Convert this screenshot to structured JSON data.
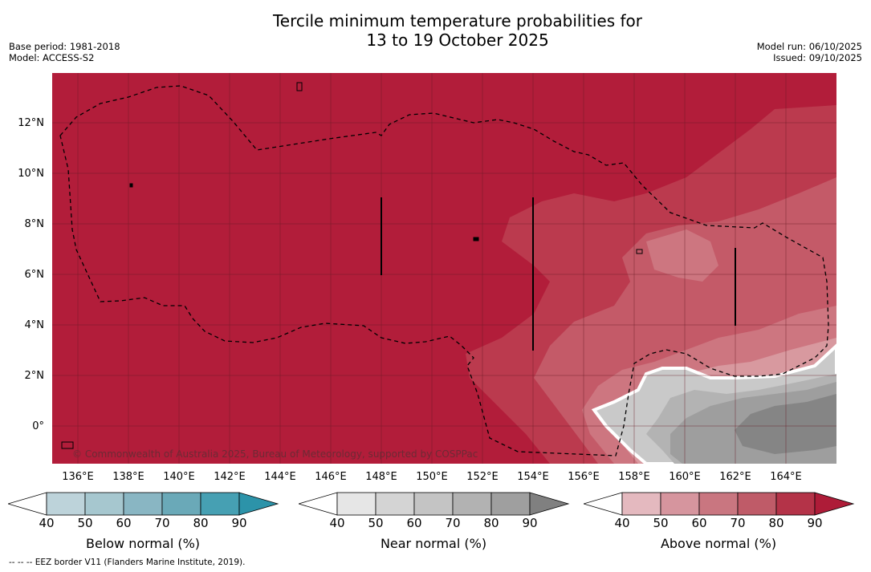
{
  "title_line1": "Tercile minimum temperature probabilities for",
  "title_line2": "13 to 19 October 2025",
  "left_meta": {
    "base_period": "Base period: 1981-2018",
    "model": "Model: ACCESS-S2"
  },
  "right_meta": {
    "model_run": "Model run: 06/10/2025",
    "issued": "Issued: 09/10/2025"
  },
  "map": {
    "lat_labels": [
      "12°N",
      "10°N",
      "8°N",
      "6°N",
      "4°N",
      "2°N",
      "0°"
    ],
    "lon_labels": [
      "136°E",
      "138°E",
      "140°E",
      "142°E",
      "144°E",
      "146°E",
      "148°E",
      "150°E",
      "152°E",
      "154°E",
      "156°E",
      "158°E",
      "160°E",
      "162°E",
      "164°E"
    ],
    "copyright": "© Commonwealth of Australia 2025, Bureau of Meteorology, supported by COSPPac"
  },
  "colorbars": [
    {
      "label": "Below normal (%)",
      "ticks": [
        "40",
        "50",
        "60",
        "70",
        "80",
        "90"
      ],
      "colors": [
        "#ffffff",
        "#bdd3da",
        "#a6c7cf",
        "#89b6c3",
        "#6aa9b8",
        "#46a0b3",
        "#2c93a9"
      ]
    },
    {
      "label": "Near normal (%)",
      "ticks": [
        "40",
        "50",
        "60",
        "70",
        "80",
        "90"
      ],
      "colors": [
        "#ffffff",
        "#e6e6e6",
        "#d4d4d4",
        "#c4c4c4",
        "#b2b2b2",
        "#9f9f9f",
        "#808080"
      ]
    },
    {
      "label": "Above normal (%)",
      "ticks": [
        "40",
        "50",
        "60",
        "70",
        "80",
        "90"
      ],
      "colors": [
        "#ffffff",
        "#e4b9bf",
        "#d6959e",
        "#c97680",
        "#bf5b68",
        "#b43348",
        "#ae1c38"
      ]
    }
  ],
  "footer": "--  --  -- EEZ border V11 (Flanders Marine Institute, 2019).",
  "palette": {
    "above_90": "#b21d3a",
    "above_80": "#bb3a4e",
    "above_70": "#c45a68",
    "above_60": "#cd7680",
    "above_50": "#d8999f",
    "near_60": "#c9c9c9",
    "near_70": "#b3b3b3",
    "near_80": "#9e9e9e",
    "near_90": "#858585"
  }
}
